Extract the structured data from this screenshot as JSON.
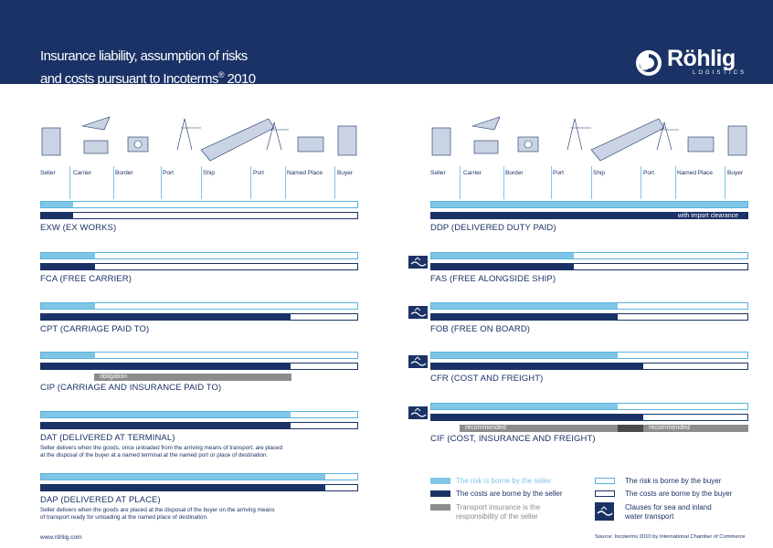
{
  "header": {
    "title_line1": "Insurance liability, assumption of risks",
    "title_line2": "and costs pursuant to Incoterms",
    "title_reg": "®",
    "title_year": "2010",
    "logo_name": "Röhlig",
    "logo_sub": "LOGISTICS"
  },
  "stages": [
    "Seller",
    "Carrier",
    "Border",
    "Port",
    "Ship",
    "Port",
    "Named Place",
    "Buyer"
  ],
  "left_terms": [
    {
      "name": "EXW (EX WORKS)",
      "risk": 0.1,
      "cost": 0.1
    },
    {
      "name": "FCA (FREE CARRIER)",
      "risk": 0.17,
      "cost": 0.17
    },
    {
      "name": "CPT (CARRIAGE PAID TO)",
      "risk": 0.17,
      "cost": 0.79
    },
    {
      "name": "CIP (CARRIAGE AND INSURANCE PAID TO)",
      "risk": 0.17,
      "cost": 0.79,
      "grey_label": "obligation"
    },
    {
      "name": "DAT (DELIVERED AT TERMINAL)",
      "risk": 0.79,
      "cost": 0.79,
      "desc1": "Seller delivers when the goods, once unloaded from the arriving means of transport, are placed",
      "desc2": "at the disposal of the buyer at a named terminal at the named port or place of destination."
    },
    {
      "name": "DAP (DELIVERED AT PLACE)",
      "risk": 0.9,
      "cost": 0.9,
      "desc1": "Seller delivers when the goods are placed at the disposal of the buyer on the arriving means",
      "desc2": "of transport ready for unloading at the named place of destination."
    }
  ],
  "right_terms": [
    {
      "name": "DDP (DELIVERED DUTY PAID)",
      "risk": 1.0,
      "cost": 1.0,
      "cost_note": "with import clearance",
      "sea": false
    },
    {
      "name": "FAS (FREE ALONGSIDE SHIP)",
      "risk": 0.45,
      "cost": 0.45,
      "sea": true
    },
    {
      "name": "FOB (FREE ON BOARD)",
      "risk": 0.59,
      "cost": 0.59,
      "sea": true
    },
    {
      "name": "CFR (COST AND FREIGHT)",
      "risk": 0.59,
      "cost": 0.67,
      "sea": true
    },
    {
      "name": "CIF (COST, INSURANCE AND FREIGHT)",
      "risk": 0.59,
      "cost": 0.67,
      "sea": true,
      "grey_left": "recommended",
      "grey_right": "recommended"
    }
  ],
  "legend": {
    "risk_seller": "The risk is borne by the seller",
    "cost_seller": "The costs are borne by the seller",
    "insurance_1": "Transport insurance is the",
    "insurance_2": "responsibility of the seller",
    "risk_buyer": "The risk is borne by the buyer",
    "cost_buyer": "The costs are borne by the buyer",
    "clauses_1": "Clauses for sea and inland",
    "clauses_2": "water transport"
  },
  "footer": {
    "website": "www.röhlig.com",
    "source": "Source: Incoterms  2010 by International Chamber of Commerce"
  },
  "colors": {
    "navy": "#1a3266",
    "light_blue": "#7fc6e6",
    "grey": "#8c8c8c"
  }
}
